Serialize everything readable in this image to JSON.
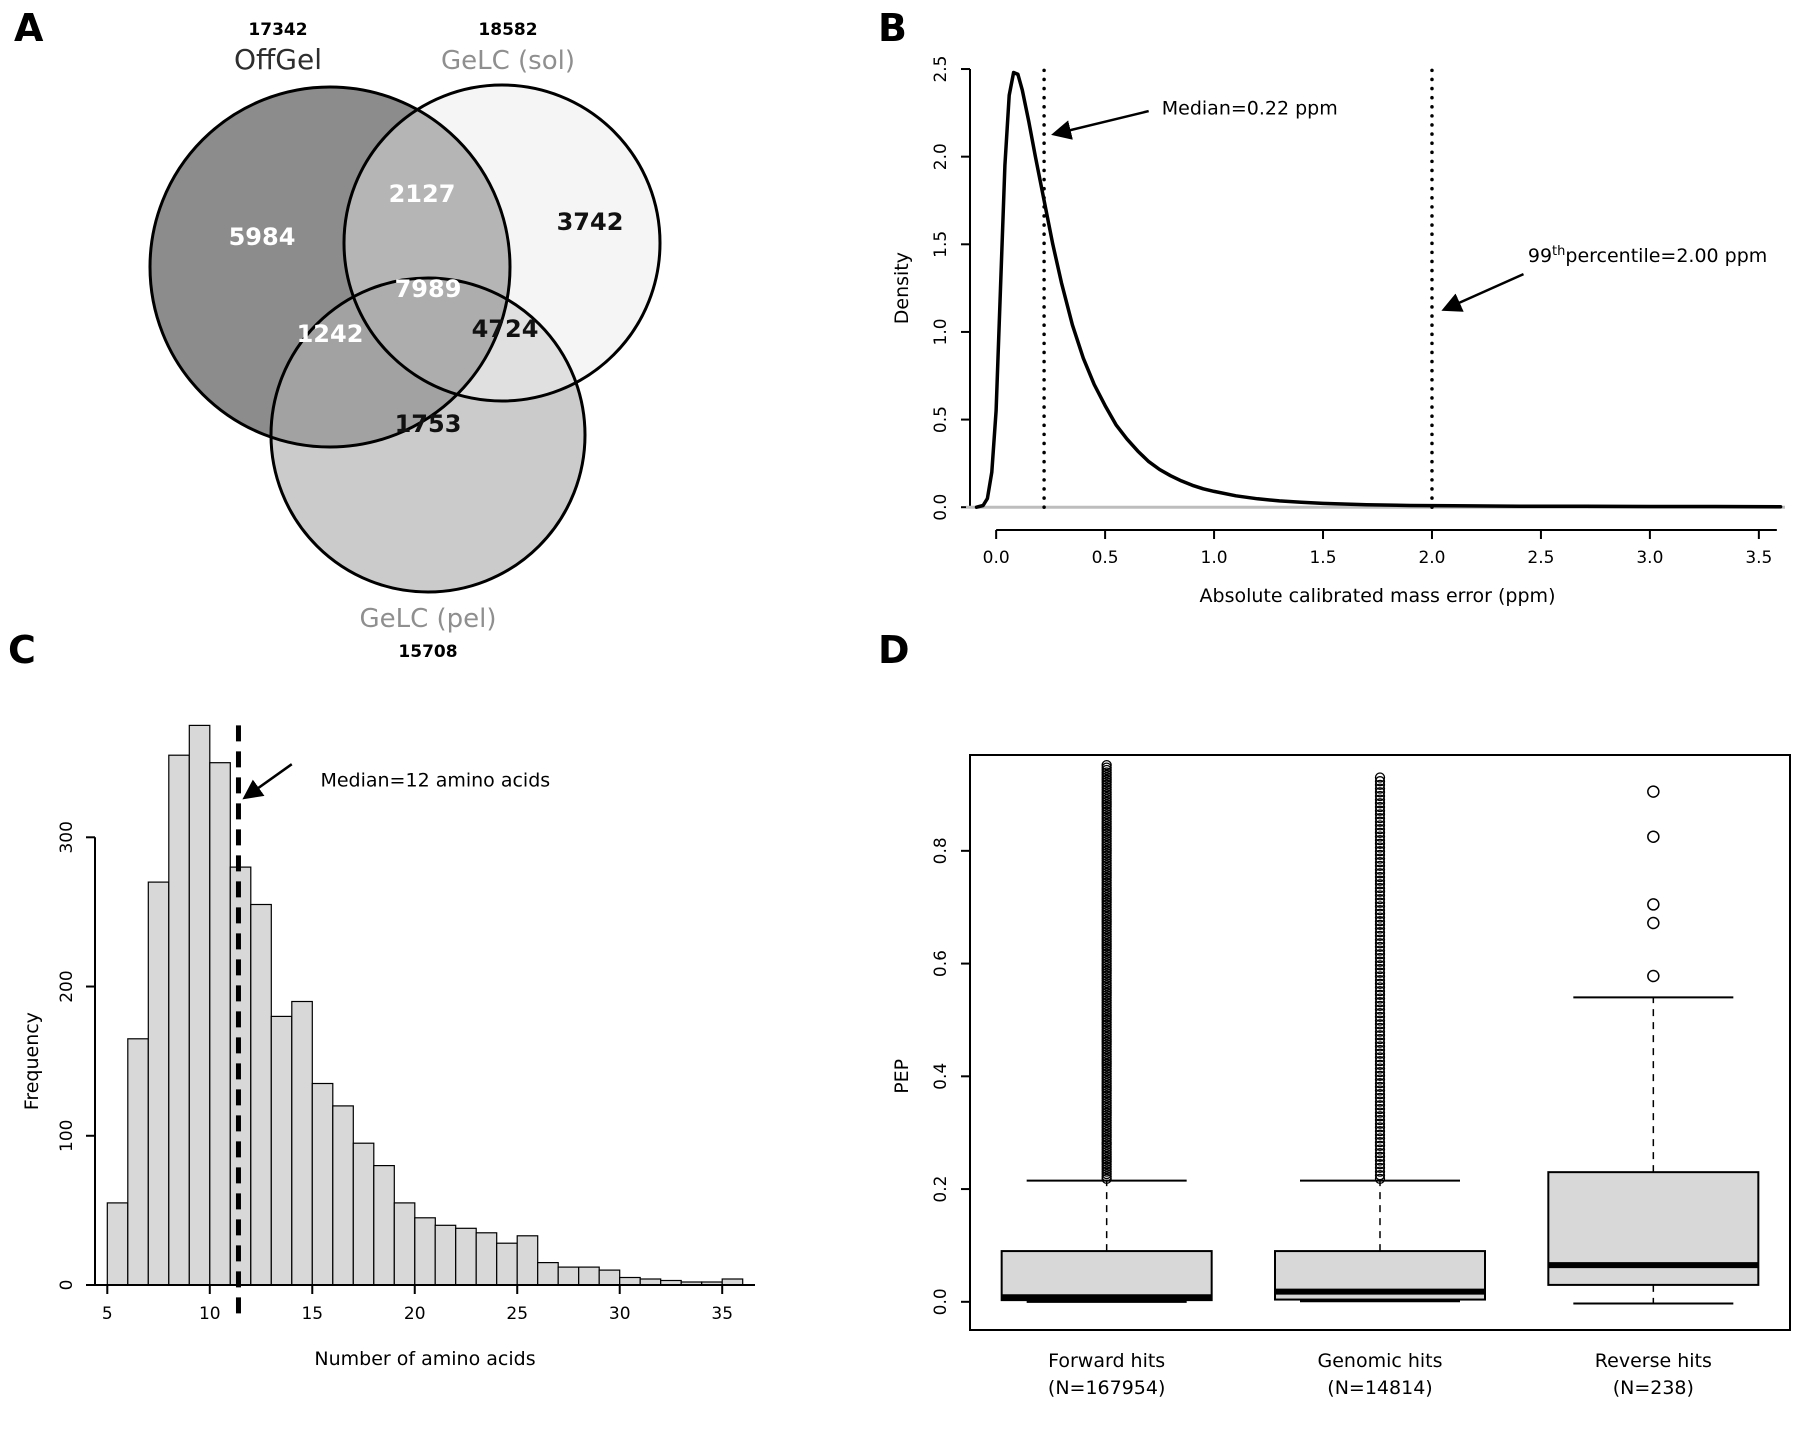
{
  "figure": {
    "background": "#ffffff",
    "panels": {
      "a": "A",
      "b": "B",
      "c": "C",
      "d": "D"
    }
  },
  "chart_data": [
    {
      "panel": "A",
      "type": "venn",
      "sets": [
        {
          "name": "OffGel",
          "total": "17342",
          "label_color": "#2e2e2e"
        },
        {
          "name": "GeLC (sol)",
          "total": "18582",
          "label_color": "#8f8f8f"
        },
        {
          "name": "GeLC (pel)",
          "total": "15708",
          "label_color": "#8f8f8f"
        }
      ],
      "regions": {
        "offgel_only": {
          "value": "5984",
          "fill": "#8c8c8c",
          "text": "#ffffff"
        },
        "offgel_sol": {
          "value": "2127",
          "fill": "#b5b5b5",
          "text": "#ffffff"
        },
        "sol_only": {
          "value": "3742",
          "fill": "#f5f5f5",
          "text": "#111111"
        },
        "center": {
          "value": "7989",
          "fill": "#adadad",
          "text": "#ffffff"
        },
        "offgel_pel": {
          "value": "1242",
          "fill": "#a2a2a2",
          "text": "#ffffff"
        },
        "sol_pel": {
          "value": "4724",
          "fill": "#e0e0e0",
          "text": "#111111"
        },
        "pel_only": {
          "value": "1753",
          "fill": "#cbcbcb",
          "text": "#111111"
        }
      }
    },
    {
      "panel": "B",
      "type": "line",
      "xlabel": "Absolute calibrated mass error (ppm)",
      "ylabel": "Density",
      "xlim": [
        -0.12,
        3.62
      ],
      "ylim": [
        -0.13,
        2.58
      ],
      "xticks": [
        "0.0",
        "0.5",
        "1.0",
        "1.5",
        "2.0",
        "2.5",
        "3.0",
        "3.5"
      ],
      "xtick_values": [
        0,
        0.5,
        1,
        1.5,
        2,
        2.5,
        3,
        3.5
      ],
      "yticks": [
        "0.0",
        "0.5",
        "1.0",
        "1.5",
        "2.0",
        "2.5"
      ],
      "ytick_values": [
        0,
        0.5,
        1,
        1.5,
        2,
        2.5
      ],
      "zero_line_color": "#bdbdbd",
      "curve": {
        "x": [
          -0.09,
          -0.06,
          -0.04,
          -0.02,
          0,
          0.02,
          0.04,
          0.06,
          0.08,
          0.1,
          0.12,
          0.15,
          0.18,
          0.22,
          0.26,
          0.3,
          0.35,
          0.4,
          0.45,
          0.5,
          0.55,
          0.6,
          0.65,
          0.7,
          0.75,
          0.8,
          0.85,
          0.9,
          0.95,
          1.0,
          1.1,
          1.2,
          1.3,
          1.4,
          1.5,
          1.7,
          1.9,
          2.1,
          2.4,
          2.7,
          3.0,
          3.3,
          3.6
        ],
        "y": [
          0,
          0.01,
          0.05,
          0.2,
          0.55,
          1.25,
          1.95,
          2.35,
          2.48,
          2.47,
          2.38,
          2.2,
          2.0,
          1.75,
          1.5,
          1.28,
          1.04,
          0.85,
          0.7,
          0.58,
          0.47,
          0.39,
          0.32,
          0.26,
          0.215,
          0.18,
          0.15,
          0.125,
          0.105,
          0.09,
          0.065,
          0.048,
          0.036,
          0.028,
          0.022,
          0.014,
          0.01,
          0.008,
          0.006,
          0.005,
          0.004,
          0.004,
          0.003
        ]
      },
      "vlines": [
        {
          "x": 0.22,
          "y0": 0,
          "y1": 2.5
        },
        {
          "x": 2.0,
          "y0": 0,
          "y1": 2.5
        }
      ],
      "annotations": [
        {
          "text": "Median=0.22 ppm",
          "x": 0.76,
          "y": 2.24,
          "arrow": {
            "x1": 0.7,
            "y1": 2.26,
            "x2": 0.27,
            "y2": 2.13
          }
        },
        {
          "text_parts": {
            "base": "99",
            "sup": "th",
            "rest": "percentile=2.00 ppm"
          },
          "x": 2.44,
          "y": 1.4,
          "arrow": {
            "x1": 2.42,
            "y1": 1.33,
            "x2": 2.06,
            "y2": 1.13
          }
        }
      ]
    },
    {
      "panel": "C",
      "type": "bar",
      "xlabel": "Number of amino acids",
      "ylabel": "Frequency",
      "bin_start": 5,
      "bin_width": 1,
      "counts": [
        55,
        165,
        270,
        355,
        375,
        350,
        280,
        255,
        180,
        190,
        135,
        120,
        95,
        80,
        55,
        45,
        40,
        38,
        35,
        28,
        33,
        15,
        12,
        12,
        10,
        5,
        4,
        3,
        2,
        2,
        4
      ],
      "xticks": [
        5,
        10,
        15,
        20,
        25,
        30,
        35
      ],
      "yticks": [
        0,
        100,
        200,
        300
      ],
      "xlim": [
        4.4,
        36.6
      ],
      "ylim": [
        0,
        392
      ],
      "bar_fill": "#d8d8d8",
      "median_line": {
        "x": 11.4,
        "y0": -22,
        "y1": 375
      },
      "annotation": {
        "text": "Median=12 amino acids",
        "x": 15.4,
        "y": 334,
        "arrow": {
          "x1": 14.0,
          "y1": 349,
          "x2": 11.75,
          "y2": 327
        }
      }
    },
    {
      "panel": "D",
      "type": "box",
      "ylabel": "PEP",
      "yticks": [
        "0.0",
        "0.2",
        "0.4",
        "0.6",
        "0.8"
      ],
      "ytick_values": [
        0,
        0.2,
        0.4,
        0.6,
        0.8
      ],
      "ylim": [
        -0.05,
        0.97
      ],
      "box_fill": "#d8d8d8",
      "groups": [
        {
          "label": "Forward hits",
          "n_label": "(N=167954)",
          "q1": 0.003,
          "median": 0.008,
          "q3": 0.09,
          "whisker_low": 0.0,
          "whisker_high": 0.215,
          "outlier_column": {
            "min": 0.218,
            "max": 0.952,
            "count": 170
          }
        },
        {
          "label": "Genomic hits",
          "n_label": "(N=14814)",
          "q1": 0.004,
          "median": 0.018,
          "q3": 0.09,
          "whisker_low": 0.001,
          "whisker_high": 0.215,
          "outlier_column": {
            "min": 0.218,
            "max": 0.93,
            "count": 110
          }
        },
        {
          "label": "Reverse hits",
          "n_label": "(N=238)",
          "q1": 0.03,
          "median": 0.065,
          "q3": 0.23,
          "whisker_low": -0.003,
          "whisker_high": 0.54,
          "outliers": [
            0.578,
            0.672,
            0.705,
            0.825,
            0.905
          ]
        }
      ]
    }
  ]
}
